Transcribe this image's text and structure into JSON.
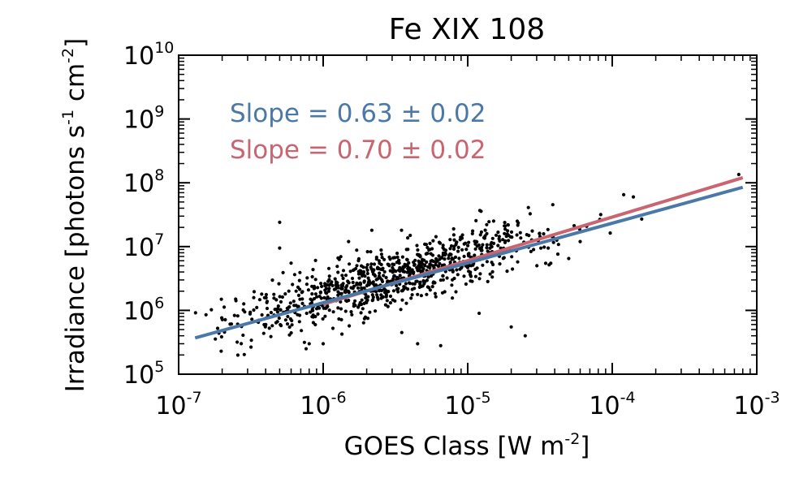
{
  "chart_data": {
    "type": "scatter",
    "title": "Fe XIX 108",
    "xlabel": "GOES Class [W m",
    "xlabel_exp": "-2",
    "xlabel_close": "]",
    "ylabel": "Irradiance [photons s",
    "ylabel_exp1": "-1",
    "ylabel_mid": " cm",
    "ylabel_exp2": "-2",
    "ylabel_close": "]",
    "xscale": "log",
    "yscale": "log",
    "xlim": [
      1e-07,
      0.001
    ],
    "ylim": [
      100000.0,
      10000000000.0
    ],
    "x_ticks": [
      {
        "base": "10",
        "exp": "-7",
        "value": 1e-07
      },
      {
        "base": "10",
        "exp": "-6",
        "value": 1e-06
      },
      {
        "base": "10",
        "exp": "-5",
        "value": 1e-05
      },
      {
        "base": "10",
        "exp": "-4",
        "value": 0.0001
      },
      {
        "base": "10",
        "exp": "-3",
        "value": 0.001
      }
    ],
    "y_ticks": [
      {
        "base": "10",
        "exp": "5",
        "value": 100000.0
      },
      {
        "base": "10",
        "exp": "6",
        "value": 1000000.0
      },
      {
        "base": "10",
        "exp": "7",
        "value": 10000000.0
      },
      {
        "base": "10",
        "exp": "8",
        "value": 100000000.0
      },
      {
        "base": "10",
        "exp": "9",
        "value": 1000000000.0
      },
      {
        "base": "10",
        "exp": "10",
        "value": 10000000000.0
      }
    ],
    "fits": [
      {
        "name": "blue fit",
        "label": "Slope = 0.63 ± 0.02",
        "color": "#4a78a8",
        "slope": 0.63,
        "x_range": [
          1.3e-07,
          0.0008
        ],
        "points": [
          [
            1.3e-07,
            370000.0
          ],
          [
            0.0008,
            85000000.0
          ]
        ]
      },
      {
        "name": "red fit",
        "label": "Slope = 0.70 ± 0.02",
        "color": "#c96470",
        "slope": 0.7,
        "x_range": [
          1e-06,
          0.0008
        ],
        "points": [
          [
            1e-06,
            1250000.0
          ],
          [
            0.0008,
            120000000.0
          ]
        ]
      }
    ],
    "scatter": {
      "color": "#000000",
      "approx_count": 900,
      "description_fit": "points scattered around the fit lines",
      "x_range": [
        1.3e-07,
        0.0008
      ],
      "log_scatter_sigma": 0.22,
      "seed": 12345,
      "outliers": [
        [
          5e-07,
          24000000.0
        ],
        [
          5e-07,
          9500000.0
        ],
        [
          8e-07,
          300000.0
        ],
        [
          1e-06,
          300000.0
        ],
        [
          3.5e-06,
          450000.0
        ],
        [
          4.5e-06,
          300000.0
        ],
        [
          6.5e-06,
          280000.0
        ],
        [
          1.2e-05,
          900000.0
        ],
        [
          2e-05,
          550000.0
        ],
        [
          1.5e-06,
          12000000.0
        ],
        [
          6e-07,
          5500000.0
        ],
        [
          2.5e-05,
          400000.0
        ],
        [
          0.00012,
          65000000.0
        ],
        [
          0.00014,
          60000000.0
        ],
        [
          0.00075,
          135000000.0
        ],
        [
          0.00016,
          27000000.0
        ],
        [
          5e-05,
          6500000.0
        ],
        [
          6e-05,
          12000000.0
        ],
        [
          4e-06,
          15000000.0
        ],
        [
          2.2e-05,
          25000000.0
        ]
      ]
    }
  }
}
